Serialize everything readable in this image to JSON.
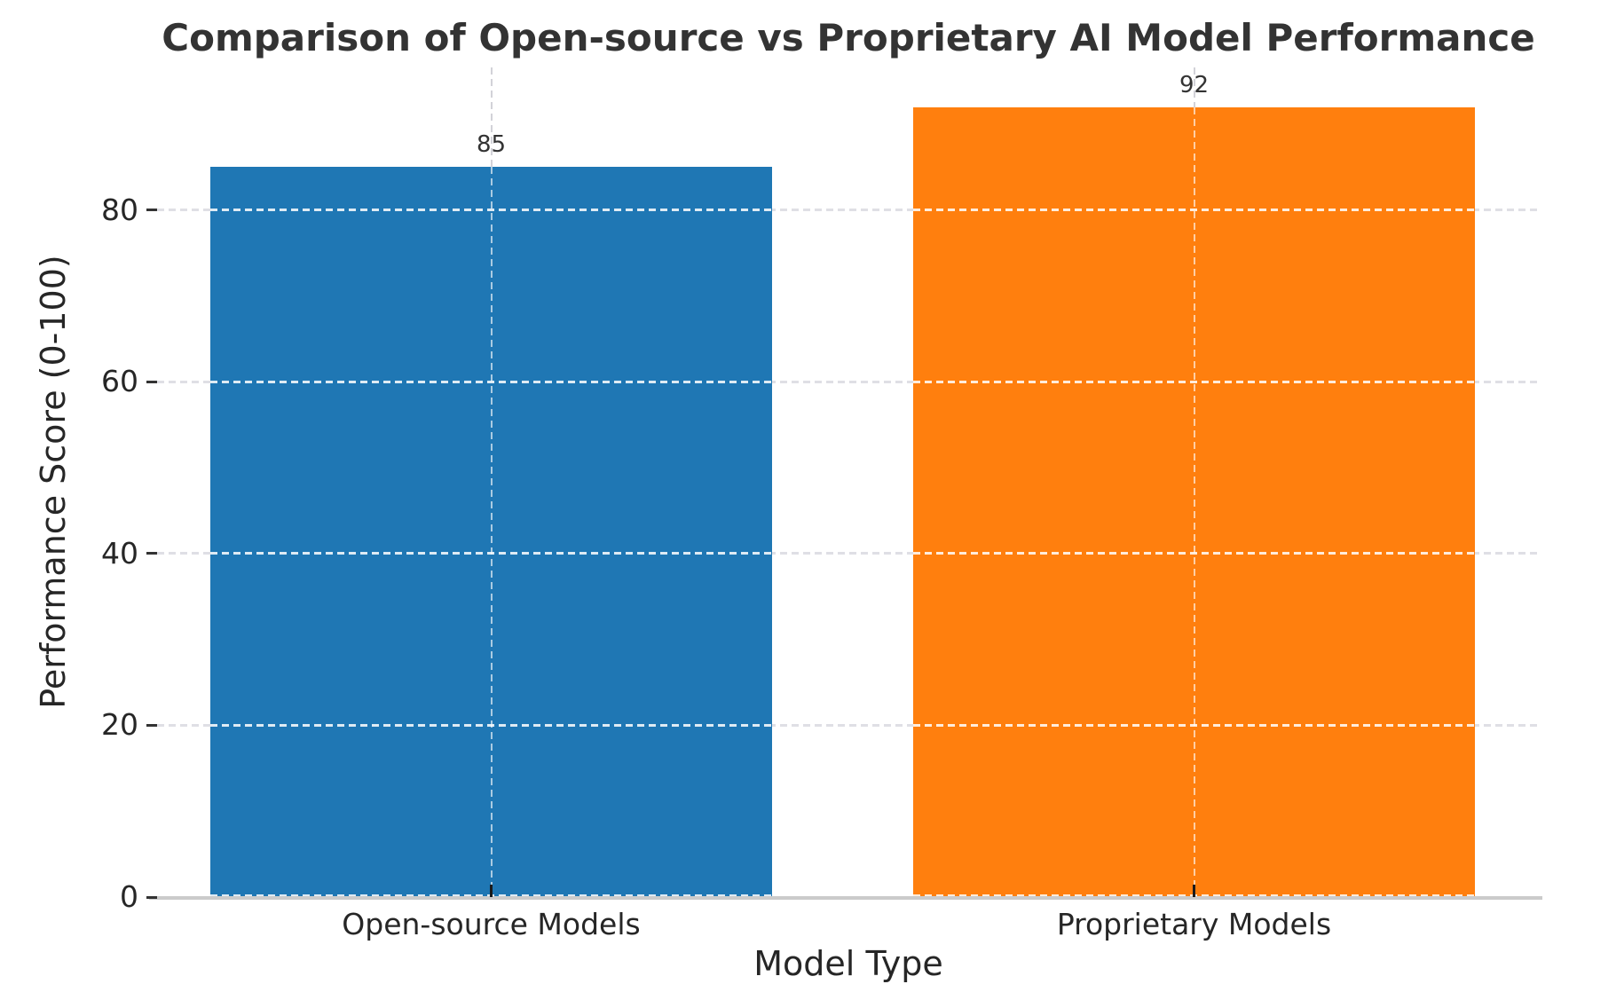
{
  "chart_data": {
    "type": "bar",
    "title": "Comparison of Open-source vs Proprietary AI Model Performance",
    "xlabel": "Model Type",
    "ylabel": "Performance Score (0-100)",
    "categories": [
      "Open-source Models",
      "Proprietary Models"
    ],
    "values": [
      85,
      92
    ],
    "value_labels": [
      "85",
      "92"
    ],
    "bar_colors": [
      "#1f77b4",
      "#ff7f0e"
    ],
    "yticks": [
      0,
      20,
      40,
      60,
      80
    ],
    "ylim": [
      0,
      96.6
    ],
    "legend": "none",
    "grid": {
      "style": "dashed",
      "axes": "both",
      "drawn_above_bars": true,
      "color_on_background": "#dfdfe5",
      "color_over_bars": "#ffffff"
    },
    "spine_color": "#cbcbcb",
    "background": "#ffffff",
    "title_color": "#333333",
    "label_color": "#262626"
  }
}
